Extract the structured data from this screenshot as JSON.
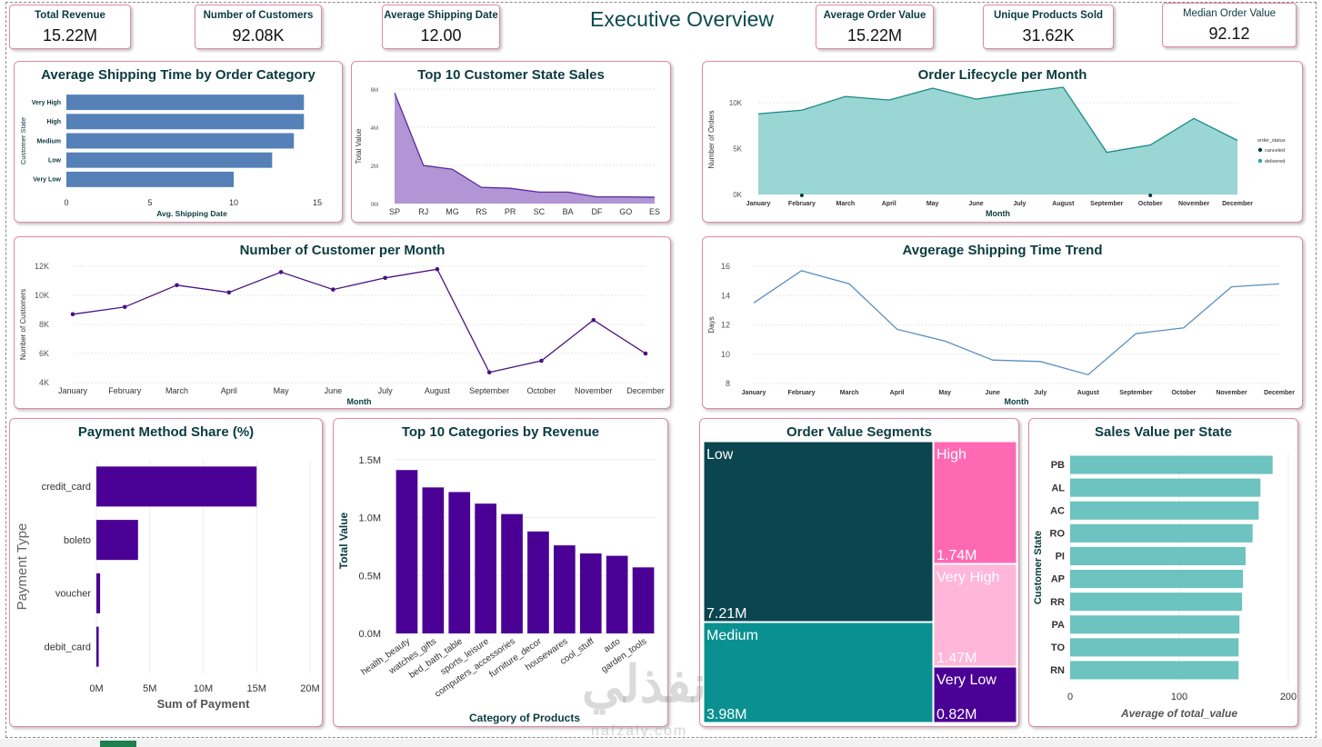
{
  "page_title": "Executive Overview",
  "kpis": {
    "total_revenue": {
      "label": "Total Revenue",
      "value": "15.22M"
    },
    "num_customers": {
      "label": "Number of Customers",
      "value": "92.08K"
    },
    "avg_shipping": {
      "label": "Average Shipping Date",
      "value": "12.00"
    },
    "avg_order": {
      "label": "Average Order Value",
      "value": "15.22M"
    },
    "unique_products": {
      "label": "Unique Products Sold",
      "value": "31.62K"
    },
    "median_order": {
      "label": "Median Order Value",
      "value": "92.12"
    }
  },
  "watermark": {
    "arabic": "نفذلي",
    "latin": "nafzaly.com"
  },
  "chart_data": [
    {
      "id": "avg_ship_category",
      "type": "bar",
      "orientation": "horizontal",
      "title": "Average Shipping Time by Order Category",
      "xlabel": "Avg. Shipping Date",
      "ylabel": "Customer State",
      "categories": [
        "Very High",
        "High",
        "Medium",
        "Low",
        "Very Low"
      ],
      "values": [
        14.2,
        14.2,
        13.6,
        12.3,
        10.0
      ],
      "xlim": [
        0,
        15
      ],
      "xticks": [
        "0",
        "5",
        "10",
        "15"
      ],
      "color": "#5580b8"
    },
    {
      "id": "top10_state_sales",
      "type": "area",
      "title": "Top 10 Customer State Sales",
      "xlabel": "",
      "ylabel": "Total Value",
      "categories": [
        "SP",
        "RJ",
        "MG",
        "RS",
        "PR",
        "SC",
        "BA",
        "DF",
        "GO",
        "ES"
      ],
      "values": [
        5.8,
        2.0,
        1.8,
        0.85,
        0.8,
        0.6,
        0.6,
        0.35,
        0.35,
        0.33
      ],
      "ylim": [
        0,
        6
      ],
      "yticks": [
        "0M",
        "2M",
        "4M",
        "6M"
      ],
      "color": "#a98ad0",
      "line_color": "#5a2a9a"
    },
    {
      "id": "order_lifecycle",
      "type": "area",
      "title": "Order Lifecycle per Month",
      "xlabel": "Month",
      "ylabel": "Number of Orders",
      "categories": [
        "January",
        "February",
        "March",
        "April",
        "May",
        "June",
        "July",
        "August",
        "September",
        "October",
        "November",
        "December"
      ],
      "series": [
        {
          "name": "delivered",
          "values": [
            8800,
            9200,
            10700,
            10300,
            11600,
            10400,
            11100,
            11700,
            4600,
            5400,
            8300,
            5900
          ],
          "color": "#8fd1cf"
        },
        {
          "name": "canceled",
          "values": [
            0,
            120,
            0,
            0,
            0,
            0,
            0,
            0,
            0,
            150,
            0,
            0
          ],
          "color": "#0b3b3f"
        }
      ],
      "ylim": [
        0,
        12000
      ],
      "yticks": [
        "0K",
        "5K",
        "10K"
      ],
      "legend": {
        "title": "order_status",
        "position": "right"
      }
    },
    {
      "id": "customers_per_month",
      "type": "line",
      "title": "Number of Customer per Month",
      "xlabel": "Month",
      "ylabel": "Number of Customers",
      "categories": [
        "January",
        "February",
        "March",
        "April",
        "May",
        "June",
        "July",
        "August",
        "September",
        "October",
        "November",
        "December"
      ],
      "values": [
        8700,
        9200,
        10700,
        10200,
        11600,
        10400,
        11200,
        11800,
        4700,
        5500,
        8300,
        6000
      ],
      "ylim": [
        4000,
        12000
      ],
      "yticks": [
        "4K",
        "6K",
        "8K",
        "10K",
        "12K"
      ],
      "color": "#4b1380"
    },
    {
      "id": "avg_ship_trend",
      "type": "line",
      "title": "Avgerage Shipping Time Trend",
      "xlabel": "Month",
      "ylabel": "Days",
      "categories": [
        "January",
        "February",
        "March",
        "April",
        "May",
        "June",
        "July",
        "August",
        "September",
        "October",
        "November",
        "December"
      ],
      "values": [
        13.5,
        15.7,
        14.8,
        11.7,
        10.9,
        9.6,
        9.5,
        8.6,
        11.4,
        11.8,
        14.6,
        14.8
      ],
      "ylim": [
        8,
        16
      ],
      "yticks": [
        "8",
        "10",
        "12",
        "14",
        "16"
      ],
      "color": "#5b8fbf"
    },
    {
      "id": "payment_share",
      "type": "bar",
      "orientation": "horizontal",
      "title": "Payment Method Share (%)",
      "xlabel": "Sum of Payment",
      "ylabel": "Payment Type",
      "categories": [
        "credit_card",
        "boleto",
        "voucher",
        "debit_card"
      ],
      "values": [
        15.0,
        3.9,
        0.35,
        0.22
      ],
      "xlim": [
        0,
        20
      ],
      "xticks": [
        "0M",
        "5M",
        "10M",
        "15M",
        "20M"
      ],
      "color": "#4b0095"
    },
    {
      "id": "top10_categories",
      "type": "bar",
      "title": "Top 10 Categories by Revenue",
      "xlabel": "Category of Products",
      "ylabel": "Total Value",
      "categories": [
        "health_beauty",
        "watches_gifts",
        "bed_bath_table",
        "sports_leisure",
        "computers_accessories",
        "furniture_decor",
        "housewares",
        "cool_stuff",
        "auto",
        "garden_tools"
      ],
      "values": [
        1.41,
        1.26,
        1.22,
        1.12,
        1.03,
        0.88,
        0.76,
        0.69,
        0.67,
        0.57
      ],
      "ylim": [
        0,
        1.6
      ],
      "yticks": [
        "0.0M",
        "0.5M",
        "1.0M",
        "1.5M"
      ],
      "color": "#4b0095"
    },
    {
      "id": "order_value_segments",
      "type": "treemap",
      "title": "Order Value Segments",
      "items": [
        {
          "label": "Low",
          "value": "7.21M",
          "color": "#0b4550",
          "text_color": "#ffffff"
        },
        {
          "label": "Medium",
          "value": "3.98M",
          "color": "#0a9090",
          "text_color": "#ffffff"
        },
        {
          "label": "High",
          "value": "1.74M",
          "color": "#ff69b4",
          "text_color": "#ffffff"
        },
        {
          "label": "Very High",
          "value": "1.47M",
          "color": "#ffb6d9",
          "text_color": "#ffffff"
        },
        {
          "label": "Very Low",
          "value": "0.82M",
          "color": "#4b0095",
          "text_color": "#ffffff"
        }
      ]
    },
    {
      "id": "sales_per_state",
      "type": "bar",
      "orientation": "horizontal",
      "title": "Sales Value per State",
      "xlabel": "Average of total_value",
      "ylabel": "Customer State",
      "categories": [
        "PB",
        "AL",
        "AC",
        "RO",
        "PI",
        "AP",
        "RR",
        "PA",
        "TO",
        "RN"
      ],
      "values": [
        232,
        218,
        216,
        209,
        201,
        198,
        197,
        194,
        193,
        193
      ],
      "xlim": [
        0,
        250
      ],
      "xticks": [
        "0",
        "100",
        "200"
      ],
      "color": "#6cc3c0"
    }
  ]
}
